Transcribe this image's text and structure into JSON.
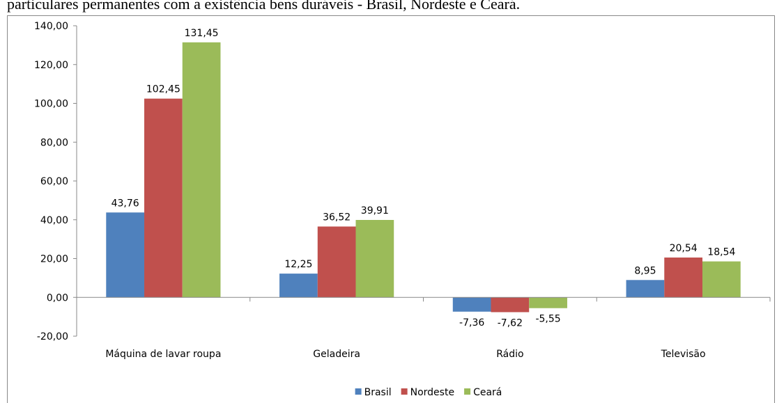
{
  "chart_data": {
    "type": "bar",
    "title": "particulares permanentes com a existência bens duráveis - Brasil, Nordeste e Ceará.",
    "categories": [
      "Máquina de lavar roupa",
      "Geladeira",
      "Rádio",
      "Televisão"
    ],
    "series": [
      {
        "name": "Brasil",
        "color": "#4f81bd",
        "values": [
          43.76,
          12.25,
          -7.36,
          8.95
        ],
        "value_labels": [
          "43,76",
          "12,25",
          "-7,36",
          "8,95"
        ]
      },
      {
        "name": "Nordeste",
        "color": "#c0504d",
        "values": [
          102.45,
          36.52,
          -7.62,
          20.54
        ],
        "value_labels": [
          "102,45",
          "36,52",
          "-7,62",
          "20,54"
        ]
      },
      {
        "name": "Ceará",
        "color": "#9bbb59",
        "values": [
          131.45,
          39.91,
          -5.55,
          18.54
        ],
        "value_labels": [
          "131,45",
          "39,91",
          "-5,55",
          "18,54"
        ]
      }
    ],
    "ylim": [
      -20,
      140
    ],
    "yticks": [
      {
        "value": -20,
        "label": "-20,00"
      },
      {
        "value": 0,
        "label": "0,00"
      },
      {
        "value": 20,
        "label": "20,00"
      },
      {
        "value": 40,
        "label": "40,00"
      },
      {
        "value": 60,
        "label": "60,00"
      },
      {
        "value": 80,
        "label": "80,00"
      },
      {
        "value": 100,
        "label": "100,00"
      },
      {
        "value": 120,
        "label": "120,00"
      },
      {
        "value": 140,
        "label": "140,00"
      }
    ],
    "grid": false,
    "legend": "bottom"
  }
}
